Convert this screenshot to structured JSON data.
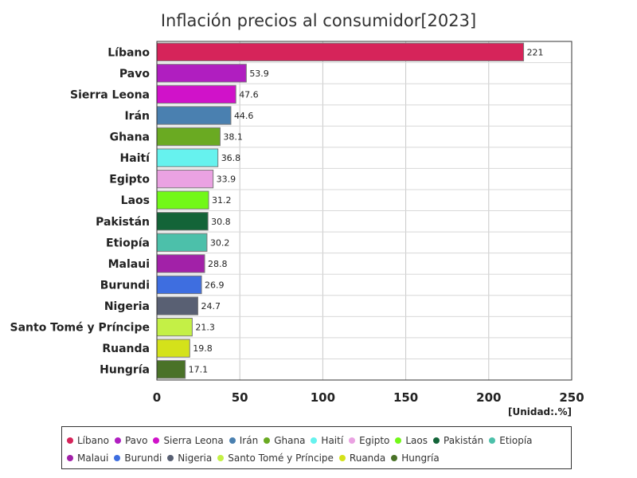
{
  "chart_data": {
    "type": "bar",
    "orientation": "horizontal",
    "title": "Inflación precios al consumidor[2023]",
    "unit_label": "[Unidad:.%]",
    "xlim": [
      0,
      250
    ],
    "x_ticks": [
      0,
      50,
      100,
      150,
      200,
      250
    ],
    "grid": true,
    "legend_position": "bottom",
    "categories": [
      "Líbano",
      "Pavo",
      "Sierra Leona",
      "Irán",
      "Ghana",
      "Haití",
      "Egipto",
      "Laos",
      "Pakistán",
      "Etiopía",
      "Malaui",
      "Burundi",
      "Nigeria",
      "Santo Tomé y Príncipe",
      "Ruanda",
      "Hungría"
    ],
    "values": [
      221,
      53.9,
      47.6,
      44.6,
      38.1,
      36.8,
      33.9,
      31.2,
      30.8,
      30.2,
      28.8,
      26.9,
      24.7,
      21.3,
      19.8,
      17.1
    ],
    "value_labels": [
      "221",
      "53.9",
      "47.6",
      "44.6",
      "38.1",
      "36.8",
      "33.9",
      "31.2",
      "30.8",
      "30.2",
      "28.8",
      "26.9",
      "24.7",
      "21.3",
      "19.8",
      "17.1"
    ],
    "colors": [
      "#d6245a",
      "#b01ec0",
      "#d012c9",
      "#4a80b0",
      "#6aaa22",
      "#66f2ee",
      "#eaa2e2",
      "#72f818",
      "#136438",
      "#4cc0aa",
      "#a221a8",
      "#3e6ee0",
      "#596073",
      "#c4f046",
      "#d4e21a",
      "#4a7228"
    ]
  }
}
